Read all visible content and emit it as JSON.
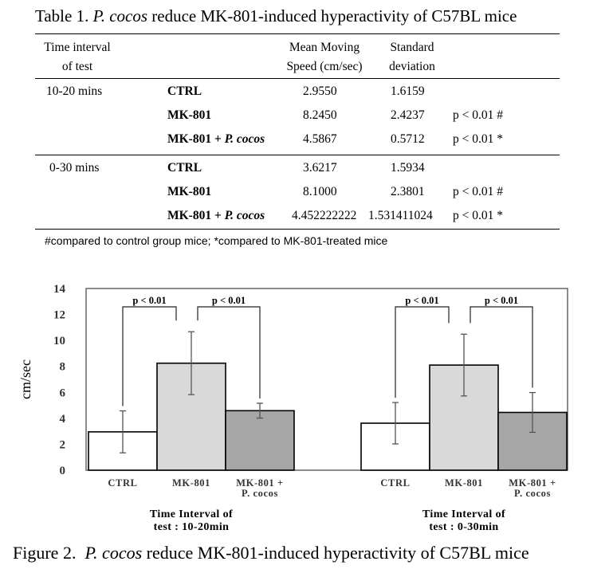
{
  "table": {
    "caption_prefix": "Table 1.",
    "caption_species": "P. cocos",
    "caption_rest": "reduce MK-801-induced hyperactivity of C57BL mice",
    "headers": {
      "time_l1": "Time interval",
      "time_l2": "of test",
      "mean_l1": "Mean Moving",
      "mean_l2": "Speed (cm/sec)",
      "sd_l1": "Standard",
      "sd_l2": "deviation"
    },
    "groups": [
      {
        "interval": "10-20 mins",
        "rows": [
          {
            "group_main": "CTRL",
            "group_italic": "",
            "mean": "2.9550",
            "sd": "1.6159",
            "p": ""
          },
          {
            "group_main": "MK-801",
            "group_italic": "",
            "mean": "8.2450",
            "sd": "2.4237",
            "p": "p < 0.01 #"
          },
          {
            "group_main": "MK-801 + ",
            "group_italic": "P. cocos",
            "mean": "4.5867",
            "sd": "0.5712",
            "p": "p < 0.01 *"
          }
        ]
      },
      {
        "interval": "0-30 mins",
        "rows": [
          {
            "group_main": "CTRL",
            "group_italic": "",
            "mean": "3.6217",
            "sd": "1.5934",
            "p": ""
          },
          {
            "group_main": "MK-801",
            "group_italic": "",
            "mean": "8.1000",
            "sd": "2.3801",
            "p": "p < 0.01 #"
          },
          {
            "group_main": "MK-801 + ",
            "group_italic": "P. cocos",
            "mean": "4.452222222",
            "sd": "1.531411024",
            "p": "p < 0.01 *"
          }
        ]
      }
    ],
    "footnote": "#compared to control group mice; *compared to MK-801-treated mice"
  },
  "figure_caption": {
    "prefix": "Figure 2.",
    "species": "P. cocos",
    "rest": "reduce MK-801-induced hyperactivity of C57BL mice"
  },
  "chart_data": {
    "type": "bar",
    "ylabel": "cm/sec",
    "ylim": [
      0,
      14
    ],
    "yticks": [
      0,
      2,
      4,
      6,
      8,
      10,
      12,
      14
    ],
    "grid": false,
    "legend": "none",
    "colors": {
      "CTRL": "#ffffff",
      "MK-801": "#d9d9d9",
      "MK-801 + P. cocos": "#a6a6a6"
    },
    "groups": [
      {
        "label_l1": "Time Interval of",
        "label_l2": "test : 10-20min",
        "bars": [
          {
            "category_l1": "CTRL",
            "category_l2": "",
            "value": 2.955,
            "error": 1.6159
          },
          {
            "category_l1": "MK-801",
            "category_l2": "",
            "value": 8.245,
            "error": 2.4237
          },
          {
            "category_l1": "MK-801 +",
            "category_l2": "P. cocos",
            "value": 4.5867,
            "error": 0.5712
          }
        ],
        "annotations": [
          "p < 0.01",
          "p < 0.01"
        ]
      },
      {
        "label_l1": "Time Interval of",
        "label_l2": "test : 0-30min",
        "bars": [
          {
            "category_l1": "CTRL",
            "category_l2": "",
            "value": 3.6217,
            "error": 1.5934
          },
          {
            "category_l1": "MK-801",
            "category_l2": "",
            "value": 8.1,
            "error": 2.3801
          },
          {
            "category_l1": "MK-801 +",
            "category_l2": "P. cocos",
            "value": 4.452222222,
            "error": 1.531411024
          }
        ],
        "annotations": [
          "p < 0.01",
          "p < 0.01"
        ]
      }
    ]
  }
}
